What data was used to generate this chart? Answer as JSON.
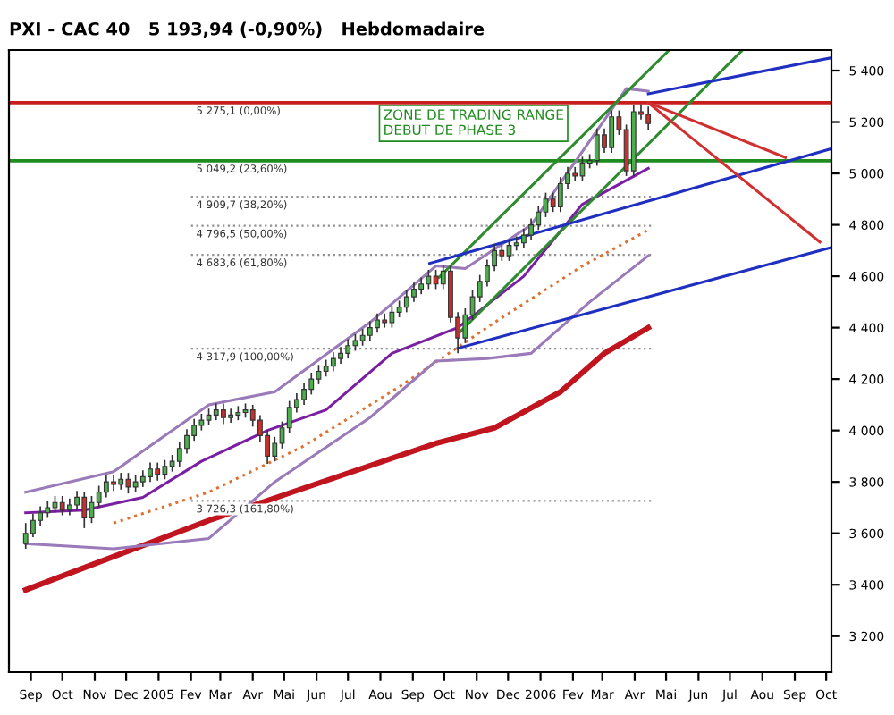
{
  "chart_data": {
    "type": "candlestick",
    "title": "PXI - CAC 40   5 193,94 (-0,90%)   Hebdomadaire",
    "annotations": [
      "ZONE DE TRADING RANGE\nDEBUT DE PHASE 3"
    ],
    "x": [
      "2004-09-10",
      "2004-09-17",
      "2004-09-24",
      "2004-10-01",
      "2004-10-08",
      "2004-10-15",
      "2004-10-22",
      "2004-10-29",
      "2004-11-05",
      "2004-11-12",
      "2004-11-19",
      "2004-11-26",
      "2004-12-03",
      "2004-12-10",
      "2004-12-17",
      "2004-12-24",
      "2004-12-31",
      "2005-01-07",
      "2005-01-14",
      "2005-01-21",
      "2005-01-28",
      "2005-02-04",
      "2005-02-11",
      "2005-02-18",
      "2005-02-25",
      "2005-03-04",
      "2005-03-11",
      "2005-03-18",
      "2005-03-25",
      "2005-04-01",
      "2005-04-08",
      "2005-04-15",
      "2005-04-22",
      "2005-04-29",
      "2005-05-06",
      "2005-05-13",
      "2005-05-20",
      "2005-05-27",
      "2005-06-03",
      "2005-06-10",
      "2005-06-17",
      "2005-06-24",
      "2005-07-01",
      "2005-07-08",
      "2005-07-15",
      "2005-07-22",
      "2005-07-29",
      "2005-08-05",
      "2005-08-12",
      "2005-08-19",
      "2005-08-26",
      "2005-09-02",
      "2005-09-09",
      "2005-09-16",
      "2005-09-23",
      "2005-09-30",
      "2005-10-07",
      "2005-10-14",
      "2005-10-21",
      "2005-10-28",
      "2005-11-04",
      "2005-11-11",
      "2005-11-18",
      "2005-11-25",
      "2005-12-02",
      "2005-12-09",
      "2005-12-16",
      "2005-12-23",
      "2005-12-30",
      "2006-01-06",
      "2006-01-13",
      "2006-01-20",
      "2006-01-27",
      "2006-02-03",
      "2006-02-10",
      "2006-02-17",
      "2006-02-24",
      "2006-03-03",
      "2006-03-10",
      "2006-03-17",
      "2006-03-24",
      "2006-03-31",
      "2006-04-07",
      "2006-04-14",
      "2006-04-21",
      "2006-04-28"
    ],
    "ohlc": [
      [
        3560,
        3640,
        3540,
        3600
      ],
      [
        3600,
        3675,
        3585,
        3650
      ],
      [
        3650,
        3705,
        3630,
        3680
      ],
      [
        3680,
        3725,
        3660,
        3700
      ],
      [
        3700,
        3745,
        3680,
        3720
      ],
      [
        3720,
        3745,
        3670,
        3690
      ],
      [
        3690,
        3735,
        3670,
        3710
      ],
      [
        3710,
        3765,
        3690,
        3740
      ],
      [
        3740,
        3760,
        3620,
        3660
      ],
      [
        3660,
        3745,
        3640,
        3720
      ],
      [
        3720,
        3785,
        3700,
        3760
      ],
      [
        3760,
        3825,
        3740,
        3800
      ],
      [
        3800,
        3825,
        3765,
        3790
      ],
      [
        3790,
        3835,
        3770,
        3810
      ],
      [
        3810,
        3835,
        3755,
        3780
      ],
      [
        3780,
        3825,
        3760,
        3800
      ],
      [
        3800,
        3845,
        3780,
        3820
      ],
      [
        3820,
        3875,
        3800,
        3850
      ],
      [
        3850,
        3875,
        3805,
        3830
      ],
      [
        3830,
        3885,
        3810,
        3860
      ],
      [
        3860,
        3905,
        3840,
        3880
      ],
      [
        3880,
        3955,
        3860,
        3930
      ],
      [
        3930,
        4005,
        3910,
        3980
      ],
      [
        3980,
        4045,
        3960,
        4020
      ],
      [
        4020,
        4065,
        4000,
        4040
      ],
      [
        4040,
        4085,
        4020,
        4060
      ],
      [
        4060,
        4105,
        4040,
        4080
      ],
      [
        4080,
        4105,
        4025,
        4050
      ],
      [
        4050,
        4085,
        4030,
        4060
      ],
      [
        4060,
        4095,
        4040,
        4070
      ],
      [
        4070,
        4105,
        4050,
        4080
      ],
      [
        4080,
        4100,
        4015,
        4040
      ],
      [
        4040,
        4060,
        3955,
        3980
      ],
      [
        3980,
        4000,
        3870,
        3900
      ],
      [
        3900,
        3975,
        3880,
        3950
      ],
      [
        3950,
        4035,
        3930,
        4010
      ],
      [
        4010,
        4115,
        3990,
        4090
      ],
      [
        4090,
        4145,
        4070,
        4120
      ],
      [
        4120,
        4185,
        4100,
        4160
      ],
      [
        4160,
        4225,
        4140,
        4200
      ],
      [
        4200,
        4255,
        4180,
        4230
      ],
      [
        4230,
        4275,
        4210,
        4250
      ],
      [
        4250,
        4305,
        4230,
        4280
      ],
      [
        4280,
        4325,
        4260,
        4300
      ],
      [
        4300,
        4355,
        4280,
        4330
      ],
      [
        4330,
        4375,
        4310,
        4350
      ],
      [
        4350,
        4395,
        4330,
        4370
      ],
      [
        4370,
        4425,
        4350,
        4400
      ],
      [
        4400,
        4455,
        4380,
        4430
      ],
      [
        4430,
        4455,
        4400,
        4420
      ],
      [
        4420,
        4485,
        4400,
        4460
      ],
      [
        4460,
        4505,
        4440,
        4480
      ],
      [
        4480,
        4545,
        4460,
        4520
      ],
      [
        4520,
        4575,
        4500,
        4550
      ],
      [
        4550,
        4595,
        4530,
        4570
      ],
      [
        4570,
        4625,
        4550,
        4600
      ],
      [
        4600,
        4625,
        4550,
        4570
      ],
      [
        4570,
        4645,
        4550,
        4620
      ],
      [
        4620,
        4640,
        4420,
        4440
      ],
      [
        4440,
        4460,
        4300,
        4360
      ],
      [
        4360,
        4475,
        4340,
        4450
      ],
      [
        4450,
        4545,
        4430,
        4520
      ],
      [
        4520,
        4605,
        4500,
        4580
      ],
      [
        4580,
        4665,
        4560,
        4640
      ],
      [
        4640,
        4725,
        4620,
        4700
      ],
      [
        4700,
        4725,
        4660,
        4680
      ],
      [
        4680,
        4745,
        4660,
        4720
      ],
      [
        4720,
        4755,
        4700,
        4730
      ],
      [
        4730,
        4785,
        4710,
        4760
      ],
      [
        4760,
        4825,
        4740,
        4800
      ],
      [
        4800,
        4875,
        4780,
        4850
      ],
      [
        4850,
        4925,
        4830,
        4900
      ],
      [
        4900,
        4925,
        4850,
        4870
      ],
      [
        4870,
        4985,
        4850,
        4960
      ],
      [
        4960,
        5025,
        4940,
        5000
      ],
      [
        5000,
        5025,
        4970,
        4990
      ],
      [
        4990,
        5065,
        4970,
        5040
      ],
      [
        5040,
        5075,
        5020,
        5050
      ],
      [
        5050,
        5175,
        5030,
        5150
      ],
      [
        5150,
        5175,
        5080,
        5100
      ],
      [
        5100,
        5245,
        5080,
        5220
      ],
      [
        5220,
        5245,
        5150,
        5170
      ],
      [
        5170,
        5190,
        4990,
        5010
      ],
      [
        5010,
        5265,
        4990,
        5240
      ],
      [
        5240,
        5270,
        5210,
        5230
      ],
      [
        5230,
        5260,
        5170,
        5194
      ]
    ],
    "series": [
      {
        "type": "line",
        "color": "#7b1fa2",
        "x": [
          "2004-09-10",
          "2004-11-05",
          "2004-12-31",
          "2005-02-25",
          "2005-04-29",
          "2005-06-24",
          "2005-08-26",
          "2005-10-28",
          "2005-12-30",
          "2006-02-24",
          "2006-04-28"
        ],
        "values": [
          3680,
          3690,
          3740,
          3880,
          4000,
          4080,
          4300,
          4400,
          4600,
          4880,
          5020
        ]
      },
      {
        "type": "line",
        "color": "#e07030",
        "line_style": "dotted",
        "x": [
          "2004-12-03",
          "2005-03-04",
          "2005-06-03",
          "2005-09-02",
          "2005-12-02",
          "2006-02-24",
          "2006-04-28"
        ],
        "values": [
          3640,
          3760,
          3940,
          4170,
          4420,
          4640,
          4780
        ]
      },
      {
        "type": "line",
        "color": "#c0141e",
        "x": [
          "2004-09-10",
          "2005-03-04",
          "2005-10-07",
          "2005-12-02",
          "2006-02-03",
          "2006-03-17",
          "2006-04-28"
        ],
        "values": [
          3380,
          3650,
          3950,
          4010,
          4150,
          4300,
          4400
        ]
      },
      {
        "type": "line",
        "color": "#9a7ab8",
        "x": [
          "2004-09-10",
          "2004-12-03",
          "2005-03-04",
          "2005-05-06",
          "2005-08-05",
          "2005-10-07",
          "2005-11-04",
          "2006-01-06",
          "2006-04-07",
          "2006-04-28"
        ],
        "values": [
          3760,
          3840,
          4100,
          4150,
          4420,
          4640,
          4630,
          4800,
          5330,
          5320
        ]
      },
      {
        "type": "line",
        "color": "#9a7ab8",
        "x": [
          "2004-09-10",
          "2004-12-03",
          "2005-03-04",
          "2005-05-06",
          "2005-08-05",
          "2005-10-07",
          "2005-11-25",
          "2006-01-06",
          "2006-03-03",
          "2006-04-28"
        ],
        "values": [
          3560,
          3540,
          3580,
          3800,
          4050,
          4270,
          4280,
          4300,
          4500,
          4680
        ]
      },
      {
        "type": "line",
        "color": "#2e8b2e",
        "x": [
          "2005-10-10",
          "2006-05-18"
        ],
        "values": [
          4596,
          5480
        ]
      },
      {
        "type": "line",
        "color": "#2e8b2e",
        "x": [
          "2005-10-28",
          "2006-07-27"
        ],
        "values": [
          4375,
          5480
        ]
      },
      {
        "type": "line",
        "color": "#1f2fbf",
        "x": [
          "2006-04-28",
          "2006-10-20"
        ],
        "values": [
          5310,
          5450
        ]
      },
      {
        "type": "line",
        "color": "#1f2fbf",
        "x": [
          "2005-10-01",
          "2006-10-20"
        ],
        "values": [
          4650,
          5096
        ]
      },
      {
        "type": "line",
        "color": "#1f2fbf",
        "x": [
          "2005-10-28",
          "2006-10-20"
        ],
        "values": [
          4320,
          4712
        ]
      },
      {
        "type": "line",
        "color": "#d03030",
        "x": [
          "2006-04-28",
          "2006-09-06"
        ],
        "values": [
          5275,
          5062
        ]
      },
      {
        "type": "line",
        "color": "#d03030",
        "x": [
          "2006-04-28",
          "2006-10-09"
        ],
        "values": [
          5275,
          4733
        ]
      }
    ],
    "ref_lines": [
      {
        "axis": "y",
        "value": 5275.1,
        "label": "5 275,1 (0,00%)",
        "color": "#c81e1e",
        "line_style": "solid"
      },
      {
        "axis": "y",
        "value": 5049.2,
        "label": "5 049,2 (23,60%)",
        "color": "#1e8c1e",
        "line_style": "solid"
      },
      {
        "axis": "y",
        "value": 4909.7,
        "label": "4 909,7 (38,20%)",
        "color": "#909090",
        "line_style": "dotted"
      },
      {
        "axis": "y",
        "value": 4796.5,
        "label": "4 796,5 (50,00%)",
        "color": "#909090",
        "line_style": "dotted"
      },
      {
        "axis": "y",
        "value": 4683.6,
        "label": "4 683,6 (61,80%)",
        "color": "#909090",
        "line_style": "dotted"
      },
      {
        "axis": "y",
        "value": 4317.9,
        "label": "4 317,9 (100,00%)",
        "color": "#909090",
        "line_style": "dotted"
      },
      {
        "axis": "y",
        "value": 3726.3,
        "label": "3 726,3 (161,80%)",
        "color": "#909090",
        "line_style": "dotted"
      }
    ],
    "xlim": [
      "2004-08-25",
      "2006-10-20"
    ],
    "xticks": [
      {
        "value": "2004-09-15",
        "label": "Sep"
      },
      {
        "value": "2004-10-15",
        "label": "Oct"
      },
      {
        "value": "2004-11-15",
        "label": "Nov"
      },
      {
        "value": "2004-12-15",
        "label": "Dec"
      },
      {
        "value": "2005-01-15",
        "label": "2005"
      },
      {
        "value": "2005-02-15",
        "label": "Fev"
      },
      {
        "value": "2005-03-15",
        "label": "Mar"
      },
      {
        "value": "2005-04-15",
        "label": "Avr"
      },
      {
        "value": "2005-05-15",
        "label": "Mai"
      },
      {
        "value": "2005-06-15",
        "label": "Jun"
      },
      {
        "value": "2005-07-15",
        "label": "Jul"
      },
      {
        "value": "2005-08-15",
        "label": "Aou"
      },
      {
        "value": "2005-09-15",
        "label": "Sep"
      },
      {
        "value": "2005-10-15",
        "label": "Oct"
      },
      {
        "value": "2005-11-15",
        "label": "Nov"
      },
      {
        "value": "2005-12-15",
        "label": "Dec"
      },
      {
        "value": "2006-01-15",
        "label": "2006"
      },
      {
        "value": "2006-02-15",
        "label": "Fev"
      },
      {
        "value": "2006-03-15",
        "label": "Mar"
      },
      {
        "value": "2006-04-15",
        "label": "Avr"
      },
      {
        "value": "2006-05-15",
        "label": "Mai"
      },
      {
        "value": "2006-06-15",
        "label": "Jun"
      },
      {
        "value": "2006-07-15",
        "label": "Jul"
      },
      {
        "value": "2006-08-15",
        "label": "Aou"
      },
      {
        "value": "2006-09-15",
        "label": "Sep"
      },
      {
        "value": "2006-10-15",
        "label": "Oct"
      }
    ],
    "ylim": [
      3060,
      5480
    ],
    "yticks": [
      {
        "value": 3200,
        "label": "3 200"
      },
      {
        "value": 3400,
        "label": "3 400"
      },
      {
        "value": 3600,
        "label": "3 600"
      },
      {
        "value": 3800,
        "label": "3 800"
      },
      {
        "value": 4000,
        "label": "4 000"
      },
      {
        "value": 4200,
        "label": "4 200"
      },
      {
        "value": 4400,
        "label": "4 400"
      },
      {
        "value": 4600,
        "label": "4 600"
      },
      {
        "value": 4800,
        "label": "4 800"
      },
      {
        "value": 5000,
        "label": "5 000"
      },
      {
        "value": 5200,
        "label": "5 200"
      },
      {
        "value": 5400,
        "label": "5 400"
      }
    ],
    "grid": false
  }
}
